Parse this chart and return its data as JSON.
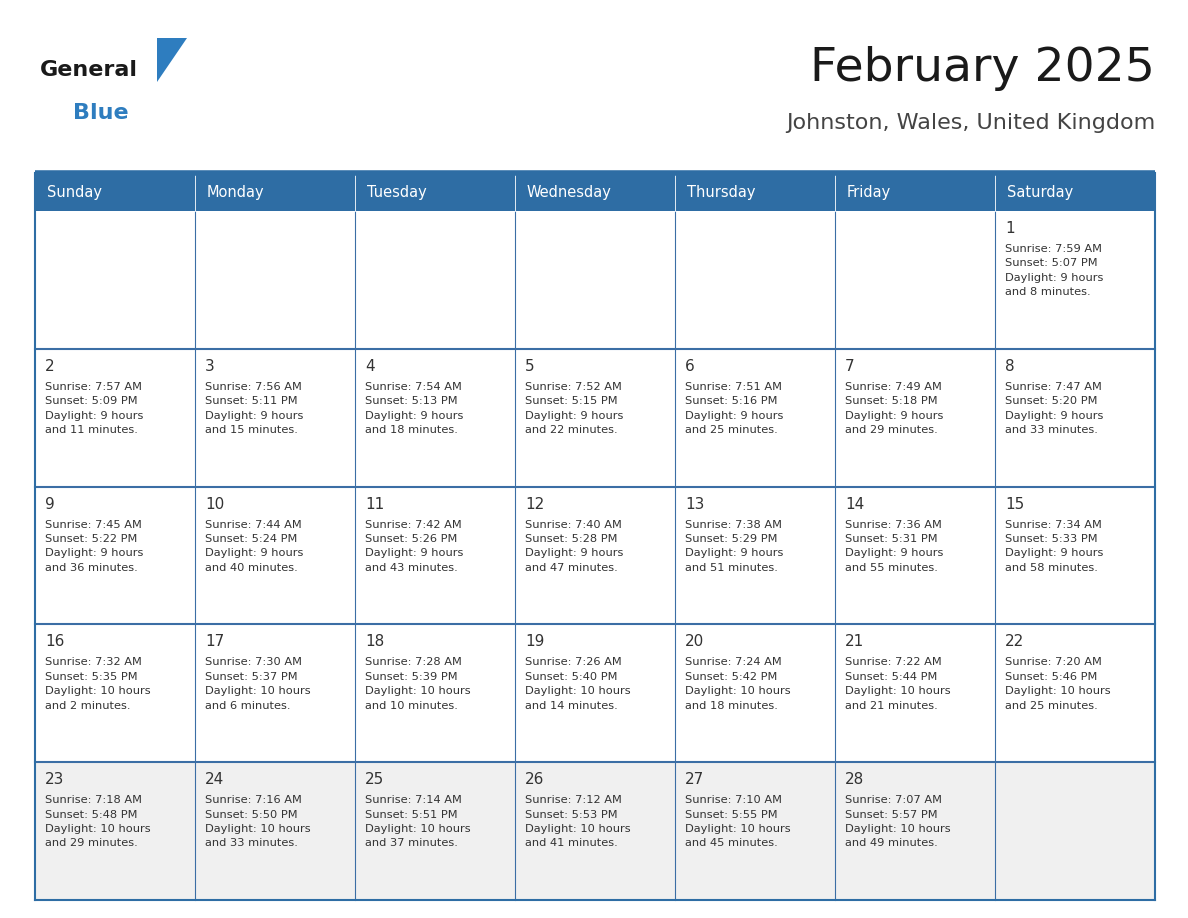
{
  "title": "February 2025",
  "subtitle": "Johnston, Wales, United Kingdom",
  "days_of_week": [
    "Sunday",
    "Monday",
    "Tuesday",
    "Wednesday",
    "Thursday",
    "Friday",
    "Saturday"
  ],
  "header_bg": "#2E6DA4",
  "header_text": "#FFFFFF",
  "cell_bg": "#FFFFFF",
  "cell_bg_last": "#F0F0F0",
  "border_color": "#2E6DA4",
  "divider_color": "#3B6EA5",
  "text_color": "#333333",
  "day_number_color": "#333333",
  "weeks": [
    [
      {
        "day": null,
        "info": ""
      },
      {
        "day": null,
        "info": ""
      },
      {
        "day": null,
        "info": ""
      },
      {
        "day": null,
        "info": ""
      },
      {
        "day": null,
        "info": ""
      },
      {
        "day": null,
        "info": ""
      },
      {
        "day": 1,
        "info": "Sunrise: 7:59 AM\nSunset: 5:07 PM\nDaylight: 9 hours\nand 8 minutes."
      }
    ],
    [
      {
        "day": 2,
        "info": "Sunrise: 7:57 AM\nSunset: 5:09 PM\nDaylight: 9 hours\nand 11 minutes."
      },
      {
        "day": 3,
        "info": "Sunrise: 7:56 AM\nSunset: 5:11 PM\nDaylight: 9 hours\nand 15 minutes."
      },
      {
        "day": 4,
        "info": "Sunrise: 7:54 AM\nSunset: 5:13 PM\nDaylight: 9 hours\nand 18 minutes."
      },
      {
        "day": 5,
        "info": "Sunrise: 7:52 AM\nSunset: 5:15 PM\nDaylight: 9 hours\nand 22 minutes."
      },
      {
        "day": 6,
        "info": "Sunrise: 7:51 AM\nSunset: 5:16 PM\nDaylight: 9 hours\nand 25 minutes."
      },
      {
        "day": 7,
        "info": "Sunrise: 7:49 AM\nSunset: 5:18 PM\nDaylight: 9 hours\nand 29 minutes."
      },
      {
        "day": 8,
        "info": "Sunrise: 7:47 AM\nSunset: 5:20 PM\nDaylight: 9 hours\nand 33 minutes."
      }
    ],
    [
      {
        "day": 9,
        "info": "Sunrise: 7:45 AM\nSunset: 5:22 PM\nDaylight: 9 hours\nand 36 minutes."
      },
      {
        "day": 10,
        "info": "Sunrise: 7:44 AM\nSunset: 5:24 PM\nDaylight: 9 hours\nand 40 minutes."
      },
      {
        "day": 11,
        "info": "Sunrise: 7:42 AM\nSunset: 5:26 PM\nDaylight: 9 hours\nand 43 minutes."
      },
      {
        "day": 12,
        "info": "Sunrise: 7:40 AM\nSunset: 5:28 PM\nDaylight: 9 hours\nand 47 minutes."
      },
      {
        "day": 13,
        "info": "Sunrise: 7:38 AM\nSunset: 5:29 PM\nDaylight: 9 hours\nand 51 minutes."
      },
      {
        "day": 14,
        "info": "Sunrise: 7:36 AM\nSunset: 5:31 PM\nDaylight: 9 hours\nand 55 minutes."
      },
      {
        "day": 15,
        "info": "Sunrise: 7:34 AM\nSunset: 5:33 PM\nDaylight: 9 hours\nand 58 minutes."
      }
    ],
    [
      {
        "day": 16,
        "info": "Sunrise: 7:32 AM\nSunset: 5:35 PM\nDaylight: 10 hours\nand 2 minutes."
      },
      {
        "day": 17,
        "info": "Sunrise: 7:30 AM\nSunset: 5:37 PM\nDaylight: 10 hours\nand 6 minutes."
      },
      {
        "day": 18,
        "info": "Sunrise: 7:28 AM\nSunset: 5:39 PM\nDaylight: 10 hours\nand 10 minutes."
      },
      {
        "day": 19,
        "info": "Sunrise: 7:26 AM\nSunset: 5:40 PM\nDaylight: 10 hours\nand 14 minutes."
      },
      {
        "day": 20,
        "info": "Sunrise: 7:24 AM\nSunset: 5:42 PM\nDaylight: 10 hours\nand 18 minutes."
      },
      {
        "day": 21,
        "info": "Sunrise: 7:22 AM\nSunset: 5:44 PM\nDaylight: 10 hours\nand 21 minutes."
      },
      {
        "day": 22,
        "info": "Sunrise: 7:20 AM\nSunset: 5:46 PM\nDaylight: 10 hours\nand 25 minutes."
      }
    ],
    [
      {
        "day": 23,
        "info": "Sunrise: 7:18 AM\nSunset: 5:48 PM\nDaylight: 10 hours\nand 29 minutes."
      },
      {
        "day": 24,
        "info": "Sunrise: 7:16 AM\nSunset: 5:50 PM\nDaylight: 10 hours\nand 33 minutes."
      },
      {
        "day": 25,
        "info": "Sunrise: 7:14 AM\nSunset: 5:51 PM\nDaylight: 10 hours\nand 37 minutes."
      },
      {
        "day": 26,
        "info": "Sunrise: 7:12 AM\nSunset: 5:53 PM\nDaylight: 10 hours\nand 41 minutes."
      },
      {
        "day": 27,
        "info": "Sunrise: 7:10 AM\nSunset: 5:55 PM\nDaylight: 10 hours\nand 45 minutes."
      },
      {
        "day": 28,
        "info": "Sunrise: 7:07 AM\nSunset: 5:57 PM\nDaylight: 10 hours\nand 49 minutes."
      },
      {
        "day": null,
        "info": ""
      }
    ]
  ],
  "logo_text_general": "General",
  "logo_text_blue": "Blue",
  "logo_triangle_color": "#2E7DBF"
}
